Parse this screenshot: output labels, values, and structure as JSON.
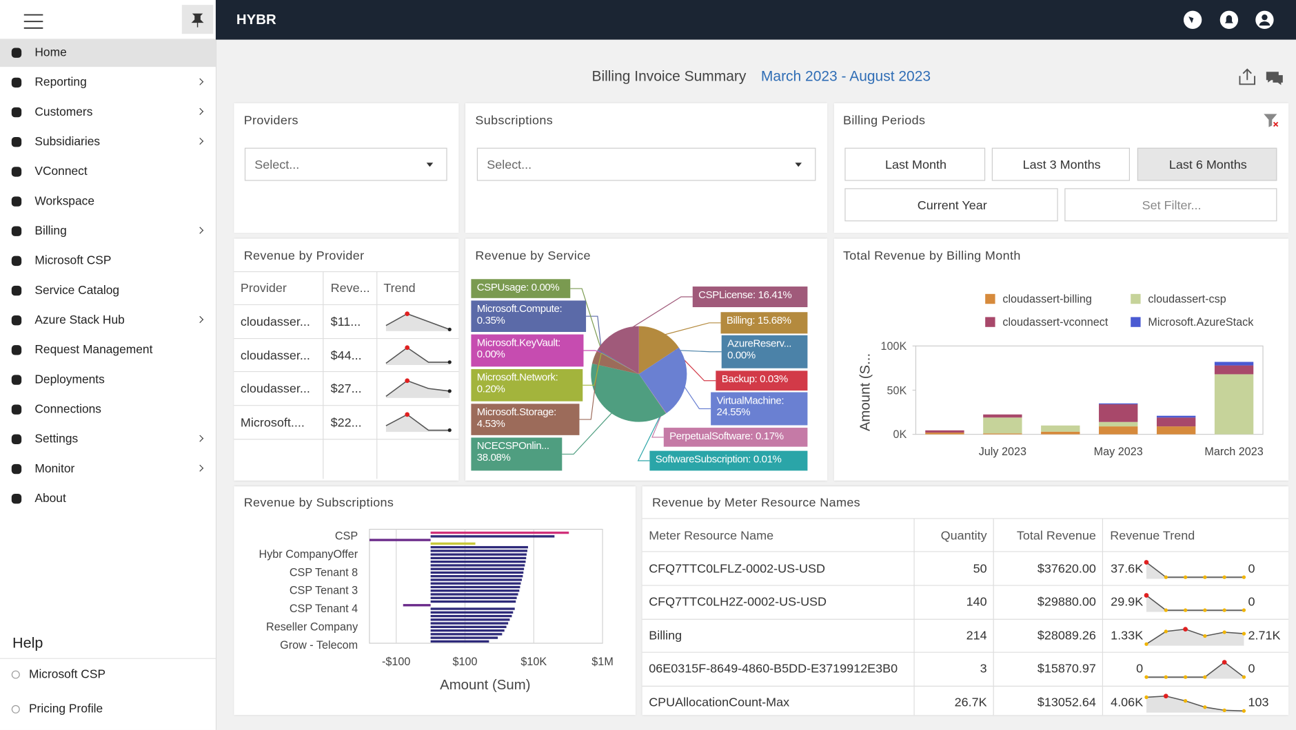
{
  "sidebar": {
    "selected": 0,
    "items": [
      {
        "label": "Home",
        "submenu": false
      },
      {
        "label": "Reporting",
        "submenu": true
      },
      {
        "label": "Customers",
        "submenu": true
      },
      {
        "label": "Subsidiaries",
        "submenu": true
      },
      {
        "label": "VConnect",
        "submenu": false
      },
      {
        "label": "Workspace",
        "submenu": false
      },
      {
        "label": "Billing",
        "submenu": true
      },
      {
        "label": "Microsoft CSP",
        "submenu": false
      },
      {
        "label": "Service Catalog",
        "submenu": false
      },
      {
        "label": "Azure Stack Hub",
        "submenu": true
      },
      {
        "label": "Request Management",
        "submenu": false
      },
      {
        "label": "Deployments",
        "submenu": false
      },
      {
        "label": "Connections",
        "submenu": false
      },
      {
        "label": "Settings",
        "submenu": true
      },
      {
        "label": "Monitor",
        "submenu": true
      },
      {
        "label": "About",
        "submenu": false
      }
    ],
    "help": {
      "title": "Help",
      "items": [
        "Microsoft CSP",
        "Pricing Profile"
      ]
    }
  },
  "header": {
    "brand": "HYBR"
  },
  "summary": {
    "title": "Billing Invoice Summary",
    "range": "March 2023 - August 2023"
  },
  "providers": {
    "title": "Providers",
    "placeholder": "Select..."
  },
  "subscriptions": {
    "title": "Subscriptions",
    "placeholder": "Select..."
  },
  "billing_periods": {
    "title": "Billing Periods",
    "buttons": [
      "Last Month",
      "Last 3 Months",
      "Last 6 Months",
      "Current Year",
      "Set Filter..."
    ],
    "selected": 2
  },
  "revenue_by_provider": {
    "title": "Revenue by Provider",
    "columns": [
      "Provider",
      "Reve...",
      "Trend"
    ],
    "rows": [
      {
        "provider": "cloudasser...",
        "revenue": "$11...",
        "trend": [
          40,
          100,
          60,
          20
        ]
      },
      {
        "provider": "cloudasser...",
        "revenue": "$44...",
        "trend": [
          30,
          100,
          35,
          35
        ]
      },
      {
        "provider": "cloudasser...",
        "revenue": "$27...",
        "trend": [
          40,
          100,
          70,
          60
        ]
      },
      {
        "provider": "Microsoft....",
        "revenue": "$22...",
        "trend": [
          50,
          100,
          30,
          30
        ]
      }
    ]
  },
  "revenue_by_service": {
    "type": "pie",
    "title": "Revenue by Service",
    "values": [
      15.68,
      0.0,
      0.03,
      24.55,
      0.17,
      0.01,
      38.08,
      4.53,
      0.2,
      0.0,
      0.35,
      0.0,
      16.41
    ],
    "value_labels": [
      "Billing: 15.68%",
      "AzureReserv... 0.00%",
      "Backup: 0.03%",
      "VirtualMachine: 24.55%",
      "PerpetualSoftware: 0.17%",
      "SoftwareSubscription: 0.01%",
      "NCECSPOnlin... 38.08%",
      "Microsoft.Storage: 4.53%",
      "Microsoft.Network: 0.20%",
      "Microsoft.KeyVault: 0.00%",
      "Microsoft.Compute: 0.35%",
      "CSPUsage: 0.00%",
      "CSPLicense: 16.41%"
    ],
    "colors": [
      "#b48a3e",
      "#4b82a8",
      "#d23a48",
      "#6a80d2",
      "#c57aa6",
      "#2aa5a8",
      "#4f9e80",
      "#9c6b5a",
      "#a3b43c",
      "#c64cb0",
      "#5b6aa8",
      "#7a9a50",
      "#a05a7a"
    ]
  },
  "revenue_by_month": {
    "type": "bar",
    "stacked": true,
    "title": "Total Revenue by Billing Month",
    "y_label": "Amount (S...",
    "categories": [
      null,
      "July 2023",
      null,
      "May 2023",
      null,
      "March 2023"
    ],
    "series": [
      {
        "name": "cloudassert-billing",
        "color": "#d68a3c",
        "values": [
          2000,
          1000,
          3000,
          9000,
          9000,
          0
        ]
      },
      {
        "name": "cloudassert-csp",
        "color": "#c6d39a",
        "values": [
          0,
          18000,
          7000,
          5000,
          0,
          68000
        ]
      },
      {
        "name": "cloudassert-vconnect",
        "color": "#a8486a",
        "values": [
          2500,
          3500,
          0,
          20000,
          10000,
          10000
        ]
      },
      {
        "name": "Microsoft.AzureStack",
        "color": "#4a5ad2",
        "values": [
          0,
          0,
          0,
          1000,
          2000,
          4000
        ]
      }
    ],
    "ylim": [
      0,
      100000
    ],
    "yticks": [
      {
        "value": 0,
        "label": "0K"
      },
      {
        "value": 50000,
        "label": "50K"
      },
      {
        "value": 100000,
        "label": "100K"
      }
    ],
    "grid": false
  },
  "revenue_by_subscriptions": {
    "type": "bar",
    "orientation": "horizontal",
    "scale": "symlog",
    "title": "Revenue by Subscriptions",
    "x_label": "Amount (Sum)",
    "categories": [
      "CSP",
      null,
      null,
      null,
      null,
      "Hybr CompanyOffer",
      null,
      null,
      null,
      null,
      "CSP Tenant 8",
      null,
      null,
      null,
      null,
      "CSP Tenant 3",
      null,
      null,
      null,
      null,
      "CSP Tenant 4",
      null,
      null,
      null,
      null,
      "Reseller Company",
      null,
      null,
      null,
      null,
      "Grow - Telecom"
    ],
    "values": [
      105000,
      40000,
      -600,
      200,
      6800,
      6500,
      6200,
      6000,
      5800,
      5500,
      5200,
      5000,
      4800,
      4500,
      4200,
      4000,
      3800,
      3500,
      3200,
      3000,
      -80,
      2800,
      2500,
      2300,
      2000,
      1800,
      1600,
      1400,
      1200,
      900,
      500
    ],
    "colors": [
      "#d0307a",
      "#2e2a7a",
      "#6a2a8a",
      "#c8c83a",
      "#2e2a7a",
      "#2e2a7a",
      "#2e2a7a",
      "#2e2a7a",
      "#2e2a7a",
      "#2e2a7a",
      "#2e2a7a",
      "#2e2a7a",
      "#2e2a7a",
      "#2e2a7a",
      "#2e2a7a",
      "#2e2a7a",
      "#2e2a7a",
      "#2e2a7a",
      "#2e2a7a",
      "#2e2a7a",
      "#6a2a8a",
      "#2e2a7a",
      "#2e2a7a",
      "#2e2a7a",
      "#2e2a7a",
      "#2e2a7a",
      "#2e2a7a",
      "#2e2a7a",
      "#2e2a7a",
      "#2e2a7a",
      "#2e2a7a"
    ],
    "xlim": [
      -600,
      1000000
    ],
    "xticks": [
      {
        "value": -100,
        "label": "-$100"
      },
      {
        "value": 100,
        "label": "$100"
      },
      {
        "value": 10000,
        "label": "$10K"
      },
      {
        "value": 1000000,
        "label": "$1M"
      }
    ],
    "grid": true
  },
  "meter": {
    "title": "Revenue by Meter Resource Names",
    "columns": [
      "Meter Resource Name",
      "Quantity",
      "Total Revenue",
      "Revenue Trend"
    ],
    "rows": [
      {
        "name": "CFQ7TTC0LFLZ-0002-US-USD",
        "quantity": "50",
        "total": "$37620.00",
        "trend": {
          "values": [
            37620,
            0,
            0,
            0,
            0,
            0
          ],
          "value_labels": [
            "37.6K",
            null,
            null,
            null,
            null,
            "0"
          ]
        }
      },
      {
        "name": "CFQ7TTC0LH2Z-0002-US-USD",
        "quantity": "140",
        "total": "$29880.00",
        "trend": {
          "values": [
            29880,
            0,
            0,
            0,
            0,
            0
          ],
          "value_labels": [
            "29.9K",
            null,
            null,
            null,
            null,
            "0"
          ]
        }
      },
      {
        "name": "Billing",
        "quantity": "214",
        "total": "$28089.26",
        "trend": {
          "values": [
            1330,
            3000,
            3300,
            2400,
            2900,
            2710
          ],
          "value_labels": [
            "1.33K",
            null,
            null,
            null,
            null,
            "2.71K"
          ]
        }
      },
      {
        "name": "06E0315F-8649-4860-B5DD-E3719912E3B0",
        "quantity": "3",
        "total": "$15870.97",
        "trend": {
          "values": [
            0,
            0,
            0,
            0,
            15870,
            0
          ],
          "value_labels": [
            "0",
            null,
            null,
            null,
            null,
            "0"
          ]
        }
      },
      {
        "name": "CPUAllocationCount-Max",
        "quantity": "26.7K",
        "total": "$13052.64",
        "trend": {
          "values": [
            4060,
            4400,
            3000,
            1200,
            300,
            103
          ],
          "value_labels": [
            "4.06K",
            null,
            null,
            null,
            null,
            "103"
          ]
        }
      }
    ]
  }
}
